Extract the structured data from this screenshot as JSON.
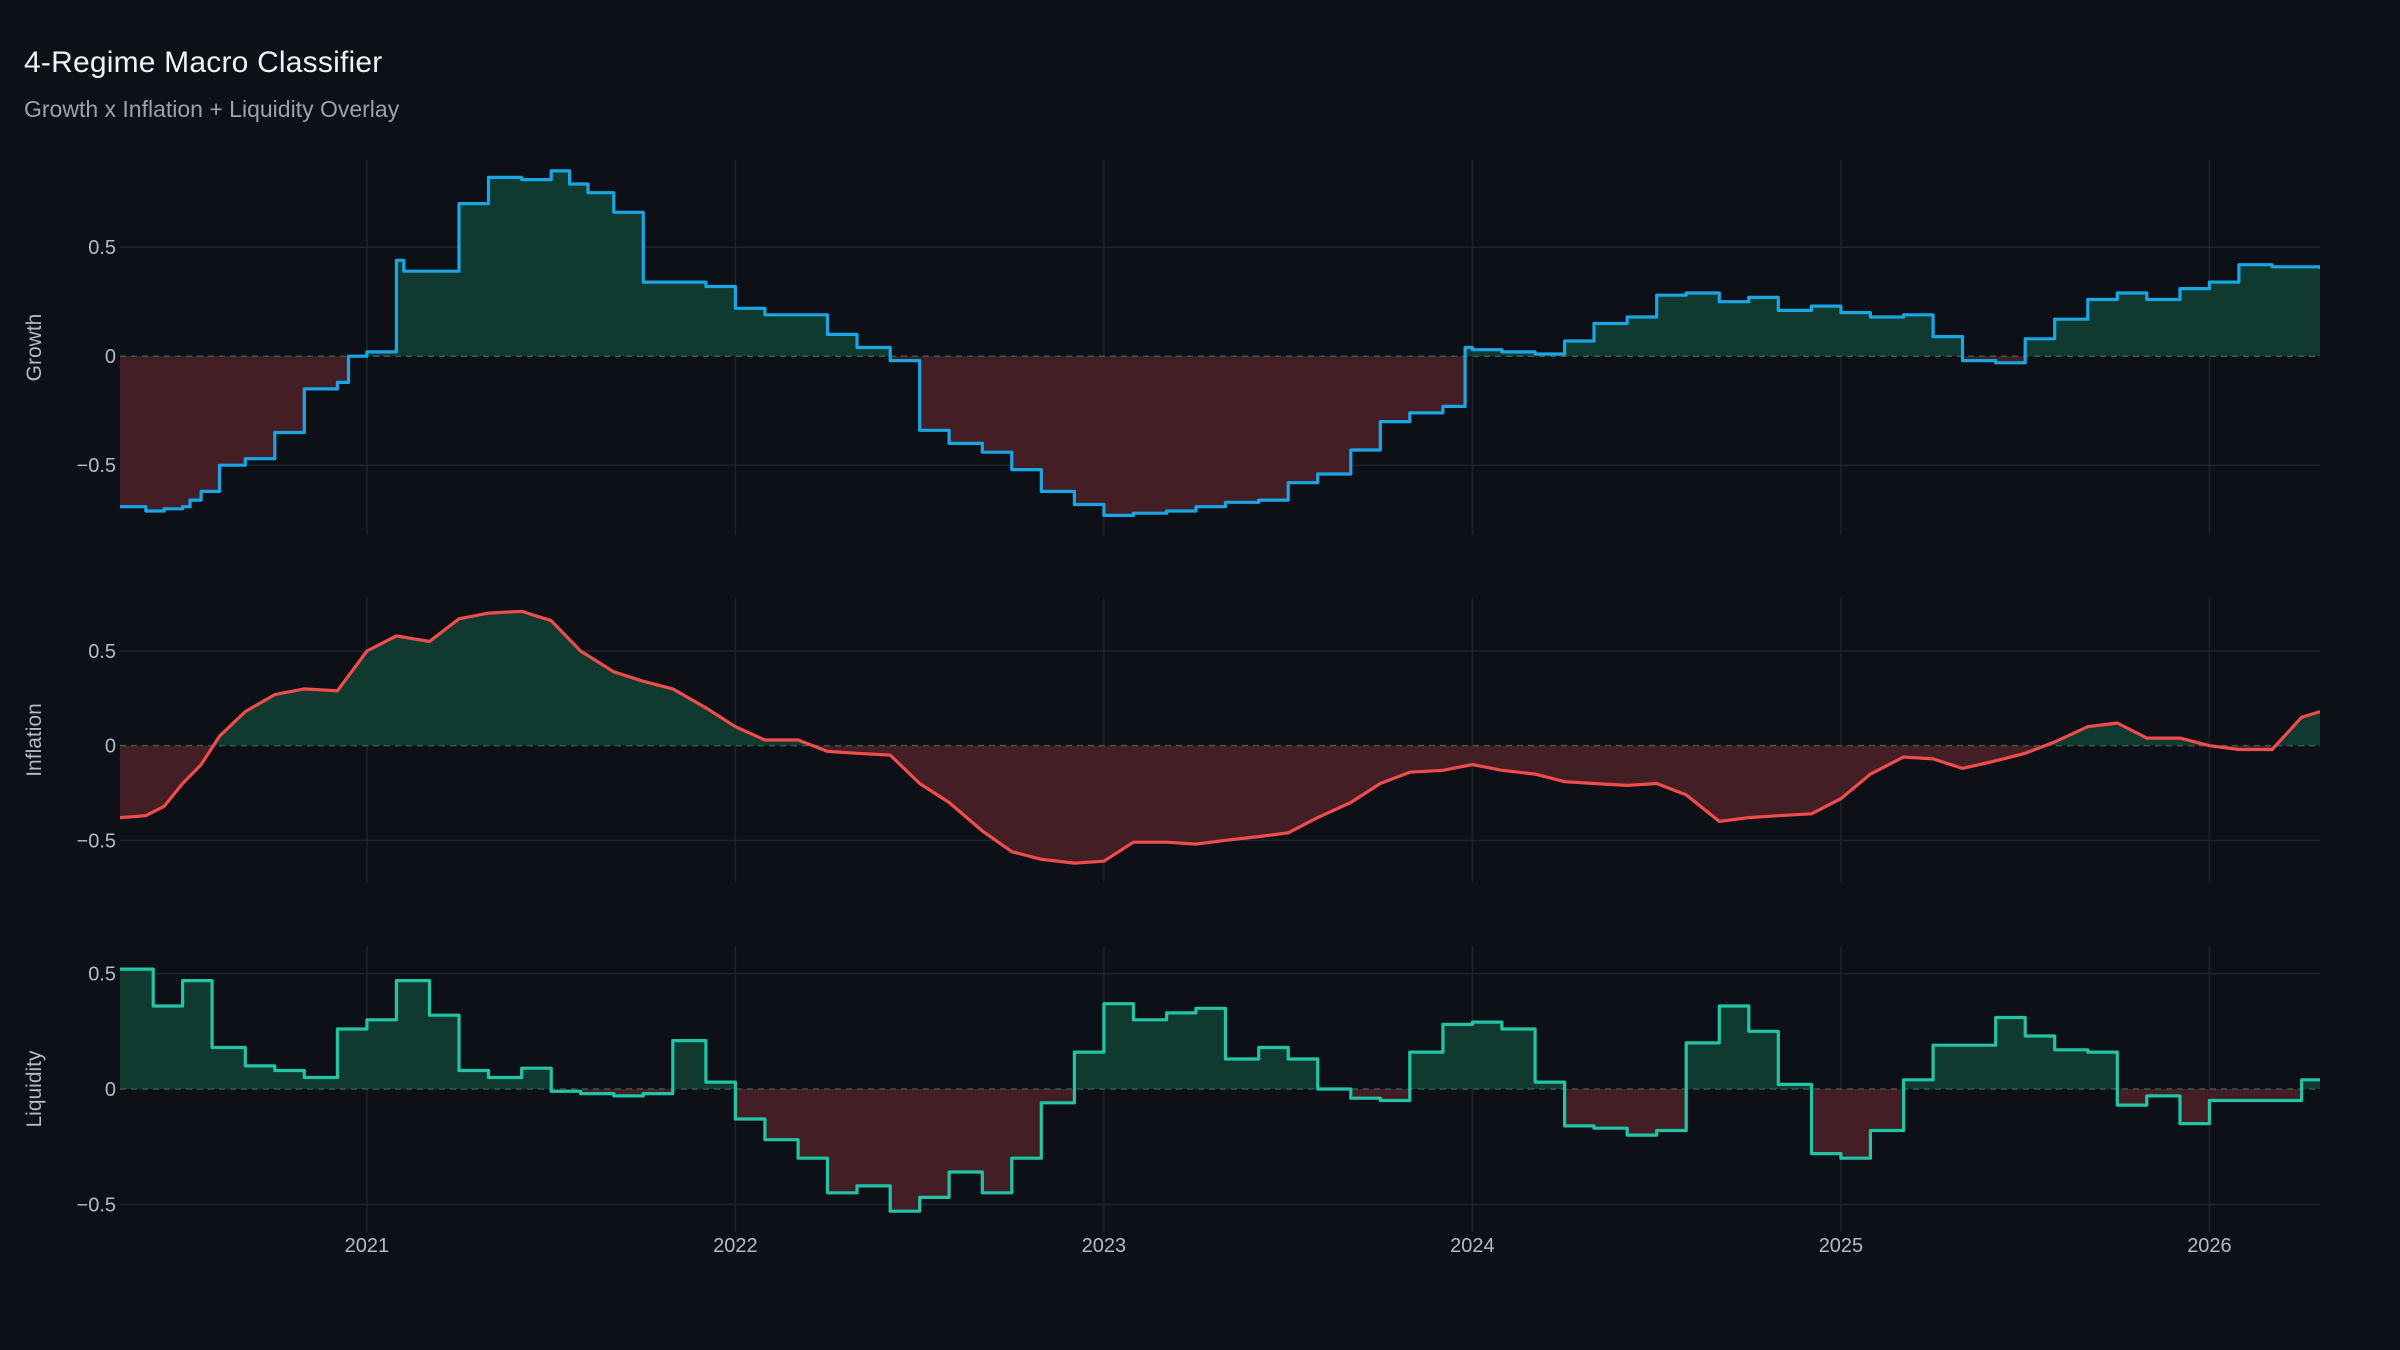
{
  "title": "4-Regime Macro Classifier",
  "subtitle": "Growth x Inflation + Liquidity Overlay",
  "colors": {
    "background": "#0d1017",
    "grid": "#1f242d",
    "zero_line": "#3a5a4c",
    "positive_fill": "#10392f",
    "negative_fill": "#431e24"
  },
  "chart_data": [
    {
      "type": "area",
      "name": "Growth",
      "ylabel": "Growth",
      "color": "#1aa6e4",
      "ylim": [
        -0.82,
        0.9
      ],
      "yticks": [
        -0.5,
        0,
        0.5
      ],
      "ytick_labels": [
        "−0.5",
        "0",
        "0.5"
      ],
      "xlim": [
        2020.33,
        2026.3
      ],
      "xticks": [
        2021,
        2022,
        2023,
        2024,
        2025,
        2026
      ],
      "xtick_labels": [
        "2021",
        "2022",
        "2023",
        "2024",
        "2025",
        "2026"
      ],
      "xaxis_labels_shown": false,
      "step": true,
      "x": [
        2020.33,
        2020.4,
        2020.45,
        2020.5,
        2020.52,
        2020.55,
        2020.6,
        2020.67,
        2020.75,
        2020.83,
        2020.92,
        2020.95,
        2021.0,
        2021.08,
        2021.1,
        2021.17,
        2021.25,
        2021.33,
        2021.42,
        2021.5,
        2021.55,
        2021.6,
        2021.67,
        2021.75,
        2021.83,
        2021.92,
        2022.0,
        2022.08,
        2022.17,
        2022.25,
        2022.33,
        2022.42,
        2022.5,
        2022.58,
        2022.67,
        2022.75,
        2022.83,
        2022.92,
        2023.0,
        2023.08,
        2023.17,
        2023.25,
        2023.33,
        2023.42,
        2023.5,
        2023.58,
        2023.67,
        2023.75,
        2023.83,
        2023.92,
        2023.98,
        2024.0,
        2024.08,
        2024.17,
        2024.25,
        2024.33,
        2024.42,
        2024.5,
        2024.58,
        2024.67,
        2024.75,
        2024.83,
        2024.92,
        2025.0,
        2025.08,
        2025.17,
        2025.25,
        2025.33,
        2025.42,
        2025.5,
        2025.58,
        2025.67,
        2025.75,
        2025.83,
        2025.92,
        2026.0,
        2026.08,
        2026.17,
        2026.25,
        2026.3
      ],
      "values": [
        -0.69,
        -0.71,
        -0.7,
        -0.69,
        -0.66,
        -0.62,
        -0.5,
        -0.47,
        -0.35,
        -0.15,
        -0.12,
        0.0,
        0.02,
        0.44,
        0.39,
        0.39,
        0.7,
        0.82,
        0.81,
        0.85,
        0.79,
        0.75,
        0.66,
        0.34,
        0.34,
        0.32,
        0.22,
        0.19,
        0.19,
        0.1,
        0.04,
        -0.02,
        -0.34,
        -0.4,
        -0.44,
        -0.52,
        -0.62,
        -0.68,
        -0.73,
        -0.72,
        -0.71,
        -0.69,
        -0.67,
        -0.66,
        -0.58,
        -0.54,
        -0.43,
        -0.3,
        -0.26,
        -0.23,
        0.04,
        0.03,
        0.02,
        0.01,
        0.07,
        0.15,
        0.18,
        0.28,
        0.29,
        0.25,
        0.27,
        0.21,
        0.23,
        0.2,
        0.18,
        0.19,
        0.09,
        -0.02,
        -0.03,
        0.08,
        0.17,
        0.26,
        0.29,
        0.26,
        0.31,
        0.34,
        0.42,
        0.41,
        0.41,
        0.4
      ]
    },
    {
      "type": "area",
      "name": "Inflation",
      "ylabel": "Inflation",
      "color": "#f04c4c",
      "ylim": [
        -0.72,
        0.78
      ],
      "yticks": [
        -0.5,
        0,
        0.5
      ],
      "ytick_labels": [
        "−0.5",
        "0",
        "0.5"
      ],
      "xlim": [
        2020.33,
        2026.3
      ],
      "xticks": [
        2021,
        2022,
        2023,
        2024,
        2025,
        2026
      ],
      "xtick_labels": [
        "2021",
        "2022",
        "2023",
        "2024",
        "2025",
        "2026"
      ],
      "xaxis_labels_shown": false,
      "step": false,
      "x": [
        2020.33,
        2020.4,
        2020.45,
        2020.5,
        2020.55,
        2020.6,
        2020.67,
        2020.75,
        2020.83,
        2020.92,
        2021.0,
        2021.08,
        2021.17,
        2021.25,
        2021.33,
        2021.42,
        2021.5,
        2021.58,
        2021.67,
        2021.75,
        2021.83,
        2021.92,
        2022.0,
        2022.08,
        2022.17,
        2022.25,
        2022.33,
        2022.42,
        2022.5,
        2022.58,
        2022.67,
        2022.75,
        2022.83,
        2022.92,
        2023.0,
        2023.08,
        2023.17,
        2023.25,
        2023.33,
        2023.42,
        2023.5,
        2023.58,
        2023.67,
        2023.75,
        2023.83,
        2023.92,
        2024.0,
        2024.08,
        2024.17,
        2024.25,
        2024.33,
        2024.42,
        2024.5,
        2024.58,
        2024.67,
        2024.75,
        2024.83,
        2024.92,
        2025.0,
        2025.08,
        2025.17,
        2025.25,
        2025.33,
        2025.42,
        2025.5,
        2025.58,
        2025.67,
        2025.75,
        2025.83,
        2025.92,
        2026.0,
        2026.08,
        2026.17,
        2026.25,
        2026.3
      ],
      "values": [
        -0.38,
        -0.37,
        -0.32,
        -0.2,
        -0.1,
        0.05,
        0.18,
        0.27,
        0.3,
        0.29,
        0.5,
        0.58,
        0.55,
        0.67,
        0.7,
        0.71,
        0.66,
        0.5,
        0.39,
        0.34,
        0.3,
        0.2,
        0.1,
        0.03,
        0.03,
        -0.03,
        -0.04,
        -0.05,
        -0.2,
        -0.3,
        -0.45,
        -0.56,
        -0.6,
        -0.62,
        -0.61,
        -0.51,
        -0.51,
        -0.52,
        -0.5,
        -0.48,
        -0.46,
        -0.38,
        -0.3,
        -0.2,
        -0.14,
        -0.13,
        -0.1,
        -0.13,
        -0.15,
        -0.19,
        -0.2,
        -0.21,
        -0.2,
        -0.26,
        -0.4,
        -0.38,
        -0.37,
        -0.36,
        -0.28,
        -0.15,
        -0.06,
        -0.07,
        -0.12,
        -0.08,
        -0.04,
        0.02,
        0.1,
        0.12,
        0.04,
        0.04,
        0.0,
        -0.02,
        -0.02,
        0.15,
        0.18
      ]
    },
    {
      "type": "area",
      "name": "Liquidity",
      "ylabel": "Liquidity",
      "color": "#22c4a6",
      "ylim": [
        -0.62,
        0.62
      ],
      "yticks": [
        -0.5,
        0,
        0.5
      ],
      "ytick_labels": [
        "−0.5",
        "0",
        "0.5"
      ],
      "xlim": [
        2020.33,
        2026.3
      ],
      "xticks": [
        2021,
        2022,
        2023,
        2024,
        2025,
        2026
      ],
      "xtick_labels": [
        "2021",
        "2022",
        "2023",
        "2024",
        "2025",
        "2026"
      ],
      "xaxis_labels_shown": true,
      "step": true,
      "x": [
        2020.33,
        2020.42,
        2020.5,
        2020.58,
        2020.67,
        2020.75,
        2020.83,
        2020.92,
        2021.0,
        2021.08,
        2021.17,
        2021.25,
        2021.33,
        2021.42,
        2021.5,
        2021.58,
        2021.67,
        2021.75,
        2021.83,
        2021.92,
        2022.0,
        2022.08,
        2022.17,
        2022.25,
        2022.33,
        2022.42,
        2022.5,
        2022.58,
        2022.67,
        2022.75,
        2022.83,
        2022.92,
        2023.0,
        2023.08,
        2023.17,
        2023.25,
        2023.33,
        2023.42,
        2023.5,
        2023.58,
        2023.67,
        2023.75,
        2023.83,
        2023.92,
        2024.0,
        2024.08,
        2024.17,
        2024.25,
        2024.33,
        2024.42,
        2024.5,
        2024.58,
        2024.67,
        2024.75,
        2024.83,
        2024.92,
        2025.0,
        2025.08,
        2025.17,
        2025.25,
        2025.33,
        2025.42,
        2025.5,
        2025.58,
        2025.67,
        2025.75,
        2025.83,
        2025.92,
        2026.0,
        2026.08,
        2026.17,
        2026.25,
        2026.3
      ],
      "values": [
        0.52,
        0.36,
        0.47,
        0.18,
        0.1,
        0.08,
        0.05,
        0.26,
        0.3,
        0.47,
        0.32,
        0.08,
        0.05,
        0.09,
        -0.01,
        -0.02,
        -0.03,
        -0.02,
        0.21,
        0.03,
        -0.13,
        -0.22,
        -0.3,
        -0.45,
        -0.42,
        -0.53,
        -0.47,
        -0.36,
        -0.45,
        -0.3,
        -0.06,
        0.16,
        0.37,
        0.3,
        0.33,
        0.35,
        0.13,
        0.18,
        0.13,
        0.0,
        -0.04,
        -0.05,
        0.16,
        0.28,
        0.29,
        0.26,
        0.03,
        -0.16,
        -0.17,
        -0.2,
        -0.18,
        0.2,
        0.36,
        0.25,
        0.02,
        -0.28,
        -0.3,
        -0.18,
        0.04,
        0.19,
        0.19,
        0.31,
        0.23,
        0.17,
        0.16,
        -0.07,
        -0.03,
        -0.15,
        -0.05,
        -0.05,
        -0.05,
        0.04,
        0.04
      ]
    }
  ]
}
